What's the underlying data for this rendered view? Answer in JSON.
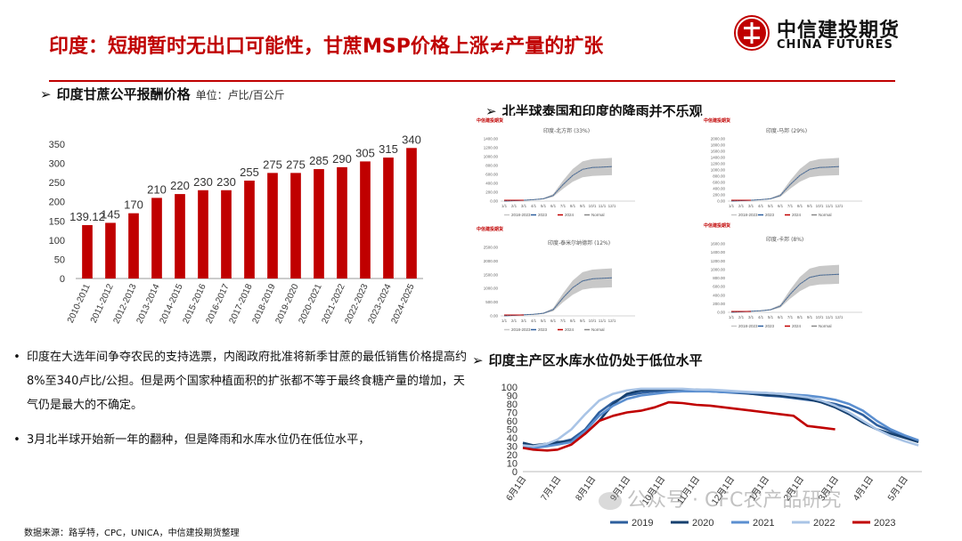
{
  "header": {
    "title": "印度：短期暂时无出口可能性，甘蔗MSP价格上涨≠产量的扩张",
    "logo_cn": "中信建投期货",
    "logo_en": "CHINA FUTURES"
  },
  "sections": {
    "left_chart": {
      "arrow": "➢",
      "title": "印度甘蔗公平报酬价格",
      "unit": "单位：卢比/百公斤"
    },
    "rain": {
      "arrow": "➢",
      "title": "北半球泰国和印度的降雨并不乐观"
    },
    "reservoir": {
      "arrow": "➢",
      "title": "印度主产区水库水位仍处于低位水平"
    }
  },
  "bullets": [
    "印度在大选年间争夺农民的支持选票，内阁政府批准将新季甘蔗的最低销售价格提高约8%至340卢比/公担。但是两个国家种植面积的扩张都不等于最终食糖产量的增加，天气仍是最大的不确定。",
    "3月北半球开始新一年的翻种，但是降雨和水库水位仍在低位水平，"
  ],
  "bullet_symbol": "•",
  "source": "数据来源：路孚特，CPC，UNICA，中信建投期货整理",
  "watermark": "公众号 · CFC农产品研究",
  "colors": {
    "accent": "#c00000",
    "bar": "#c00000"
  },
  "chart_data": [
    {
      "type": "bar",
      "categories": [
        "2010-2011",
        "2011-2012",
        "2012-2013",
        "2013-2014",
        "2014-2015",
        "2015-2016",
        "2016-2017",
        "2017-2018",
        "2018-2019",
        "2019-2020",
        "2020-2021",
        "2021-2022",
        "2022-2023",
        "2023-2024",
        "2024-2025"
      ],
      "values": [
        139.12,
        145,
        170,
        210,
        220,
        230,
        230,
        255,
        275,
        275,
        285,
        290,
        305,
        315,
        340
      ],
      "data_labels": [
        "139.12",
        "145",
        "170",
        "210",
        "220",
        "230",
        "230",
        "255",
        "275",
        "275",
        "285",
        "290",
        "305",
        "315",
        "340"
      ],
      "yticks": [
        "0",
        "50",
        "100",
        "150",
        "200",
        "250",
        "300",
        "350"
      ],
      "ylim": [
        0,
        350
      ],
      "grid": false,
      "color": "#c00000"
    },
    {
      "type": "line",
      "x_ticks": [
        "6月1日",
        "7月1日",
        "8月1日",
        "9月1日",
        "10月1日",
        "11月1日",
        "12月1日",
        "1月1日",
        "2月1日",
        "3月1日",
        "4月1日",
        "5月1日"
      ],
      "yticks": [
        "0",
        "10",
        "20",
        "30",
        "40",
        "50",
        "60",
        "70",
        "80",
        "90",
        "100"
      ],
      "ylim": [
        0,
        100
      ],
      "series": [
        {
          "name": "2019",
          "color": "#2e5f9e",
          "x": [
            0,
            0.3,
            0.7,
            1.0,
            1.4,
            1.8,
            2.2,
            2.6,
            3.0,
            3.4,
            3.8,
            4.2,
            4.6,
            5.0,
            5.4,
            5.8,
            6.2,
            6.6,
            7.0,
            7.4,
            7.8,
            8.2,
            8.6,
            9.0,
            9.4,
            9.8,
            10.2,
            10.6,
            11.0,
            11.4
          ],
          "values": [
            32,
            30,
            32,
            34,
            38,
            50,
            70,
            82,
            90,
            93,
            95,
            95,
            96,
            96,
            95,
            94,
            93,
            92,
            90,
            89,
            87,
            85,
            83,
            80,
            75,
            67,
            55,
            48,
            42,
            36
          ]
        },
        {
          "name": "2020",
          "color": "#16406f",
          "x": [
            0,
            0.3,
            0.7,
            1.0,
            1.4,
            1.8,
            2.2,
            2.6,
            3.0,
            3.4,
            3.8,
            4.2,
            4.6,
            5.0,
            5.4,
            5.8,
            6.2,
            6.6,
            7.0,
            7.4,
            7.8,
            8.2,
            8.6,
            9.0,
            9.4,
            9.8,
            10.2,
            10.6,
            11.0,
            11.4
          ],
          "values": [
            34,
            31,
            33,
            35,
            36,
            45,
            60,
            80,
            92,
            96,
            97,
            97,
            97,
            97,
            96,
            95,
            94,
            92,
            91,
            90,
            88,
            86,
            82,
            76,
            68,
            58,
            50,
            45,
            40,
            35
          ]
        },
        {
          "name": "2021",
          "color": "#5b8fd0",
          "x": [
            0,
            0.3,
            0.7,
            1.0,
            1.4,
            1.8,
            2.2,
            2.6,
            3.0,
            3.4,
            3.8,
            4.2,
            4.6,
            5.0,
            5.4,
            5.8,
            6.2,
            6.6,
            7.0,
            7.4,
            7.8,
            8.2,
            8.6,
            9.0,
            9.4,
            9.8,
            10.2,
            10.6,
            11.0,
            11.4
          ],
          "values": [
            30,
            28,
            30,
            32,
            35,
            48,
            66,
            78,
            86,
            90,
            92,
            94,
            95,
            95,
            95,
            94,
            94,
            93,
            93,
            92,
            91,
            90,
            88,
            85,
            80,
            72,
            60,
            50,
            43,
            37
          ]
        },
        {
          "name": "2022",
          "color": "#a9c4e6",
          "x": [
            0,
            0.3,
            0.7,
            1.0,
            1.4,
            1.8,
            2.2,
            2.6,
            3.0,
            3.4,
            3.8,
            4.2,
            4.6,
            5.0,
            5.4,
            5.8,
            6.2,
            6.6,
            7.0,
            7.4,
            7.8,
            8.2,
            8.6,
            9.0,
            9.4,
            9.8,
            10.2,
            10.6,
            11.0,
            11.4
          ],
          "values": [
            31,
            30,
            33,
            38,
            50,
            68,
            84,
            92,
            96,
            98,
            98,
            98,
            98,
            97,
            97,
            96,
            95,
            94,
            93,
            92,
            90,
            88,
            84,
            78,
            70,
            60,
            50,
            42,
            36,
            31
          ]
        },
        {
          "name": "2023",
          "color": "#c00000",
          "x": [
            0,
            0.3,
            0.7,
            1.0,
            1.4,
            1.8,
            2.2,
            2.6,
            3.0,
            3.4,
            3.8,
            4.2,
            4.6,
            5.0,
            5.4,
            5.8,
            6.2,
            6.6,
            7.0,
            7.4,
            7.8,
            8.2,
            8.6,
            9.0
          ],
          "values": [
            28,
            26,
            25,
            26,
            32,
            45,
            60,
            66,
            70,
            72,
            76,
            82,
            81,
            79,
            78,
            76,
            74,
            72,
            70,
            68,
            66,
            54,
            52,
            50
          ]
        }
      ],
      "legend": "bottom",
      "grid": false
    }
  ],
  "rain_panels": [
    {
      "title": "印度-北方邦 (33%)",
      "yticks": [
        "0.00",
        "200.00",
        "400.00",
        "600.00",
        "800.00",
        "1000.00",
        "1200.00",
        "1400.00"
      ],
      "ymax": 1400,
      "xticks": [
        "1/1",
        "2/1",
        "3/1",
        "4/1",
        "5/1",
        "6/1",
        "7/1",
        "8/1",
        "9/1",
        "10/1",
        "11/1",
        "12/1"
      ],
      "legend": [
        "2018-2023",
        "2023",
        "2024",
        "Normal"
      ]
    },
    {
      "title": "印度-马邦 (29%)",
      "yticks": [
        "0.00",
        "200.00",
        "400.00",
        "600.00",
        "800.00",
        "1000.00",
        "1200.00",
        "1400.00",
        "1600.00",
        "1800.00",
        "2000.00"
      ],
      "ymax": 2000,
      "xticks": [
        "1/1",
        "2/1",
        "3/1",
        "4/1",
        "5/1",
        "6/1",
        "7/1",
        "8/1",
        "9/1",
        "10/1",
        "11/1",
        "12/1"
      ],
      "legend": [
        "2018-2023",
        "2023",
        "2024",
        "Normal"
      ]
    },
    {
      "title": "印度-泰米尔纳德邦 (12%)",
      "yticks": [
        "0.00",
        "500.00",
        "1000.00",
        "1500.00",
        "2000.00",
        "2500.00"
      ],
      "ymax": 2500,
      "xticks": [
        "1/1",
        "2/1",
        "3/1",
        "4/1",
        "5/1",
        "6/1",
        "7/1",
        "8/1",
        "9/1",
        "10/1",
        "11/1",
        "12/1"
      ],
      "legend": [
        "2018-2023",
        "2023",
        "2024",
        "Normal"
      ]
    },
    {
      "title": "印度-卡邦 (8%)",
      "yticks": [
        "0.00",
        "200.00",
        "400.00",
        "600.00",
        "800.00",
        "1000.00",
        "1200.00",
        "1400.00",
        "1600.00"
      ],
      "ymax": 1600,
      "xticks": [
        "1/1",
        "2/1",
        "3/1",
        "4/1",
        "5/1",
        "6/1",
        "7/1",
        "8/1",
        "9/1",
        "10/1",
        "11/1",
        "12/1"
      ],
      "legend": [
        "2018-2023",
        "2023",
        "2024",
        "Normal"
      ]
    }
  ],
  "mini_logo": "中信建投期货",
  "mini_logo_en": "CHINA FUTURES"
}
